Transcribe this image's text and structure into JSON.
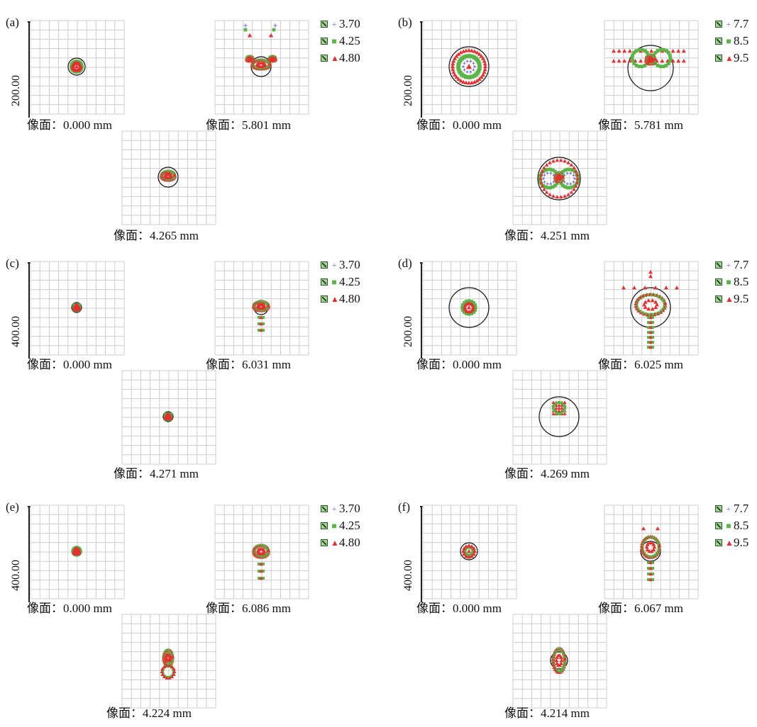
{
  "colors": {
    "grid": "#cccccc",
    "plus": "#6b6bd6",
    "square": "#5ab547",
    "triangle": "#e53030",
    "circle": "#111111"
  },
  "panels": [
    {
      "id": "a",
      "label": "(a)",
      "yval": "200.00",
      "legend": [
        "3.70",
        "4.25",
        "4.80"
      ],
      "captions": [
        "像面：0.000 mm",
        "像面：5.801 mm",
        "像面：4.265 mm"
      ]
    },
    {
      "id": "b",
      "label": "(b)",
      "yval": "200.00",
      "legend": [
        "7.7",
        "8.5",
        "9.5"
      ],
      "captions": [
        "像面：0.000 mm",
        "像面：5.781 mm",
        "像面：4.251 mm"
      ]
    },
    {
      "id": "c",
      "label": "(c)",
      "yval": "400.00",
      "legend": [
        "3.70",
        "4.25",
        "4.80"
      ],
      "captions": [
        "像面：0.000 mm",
        "像面：6.031 mm",
        "像面：4.271 mm"
      ]
    },
    {
      "id": "d",
      "label": "(d)",
      "yval": "200.00",
      "legend": [
        "7.7",
        "8.5",
        "9.5"
      ],
      "captions": [
        "像面：0.000 mm",
        "像面：6.025 mm",
        "像面：4.269 mm"
      ]
    },
    {
      "id": "e",
      "label": "(e)",
      "yval": "400.00",
      "legend": [
        "3.70",
        "4.25",
        "4.80"
      ],
      "captions": [
        "像面：0.000 mm",
        "像面：6.086 mm",
        "像面：4.224 mm"
      ]
    },
    {
      "id": "f",
      "label": "(f)",
      "yval": "400.00",
      "legend": [
        "7.7",
        "8.5",
        "9.5"
      ],
      "captions": [
        "像面：0.000 mm",
        "像面：6.067 mm",
        "像面：4.214 mm"
      ]
    }
  ]
}
